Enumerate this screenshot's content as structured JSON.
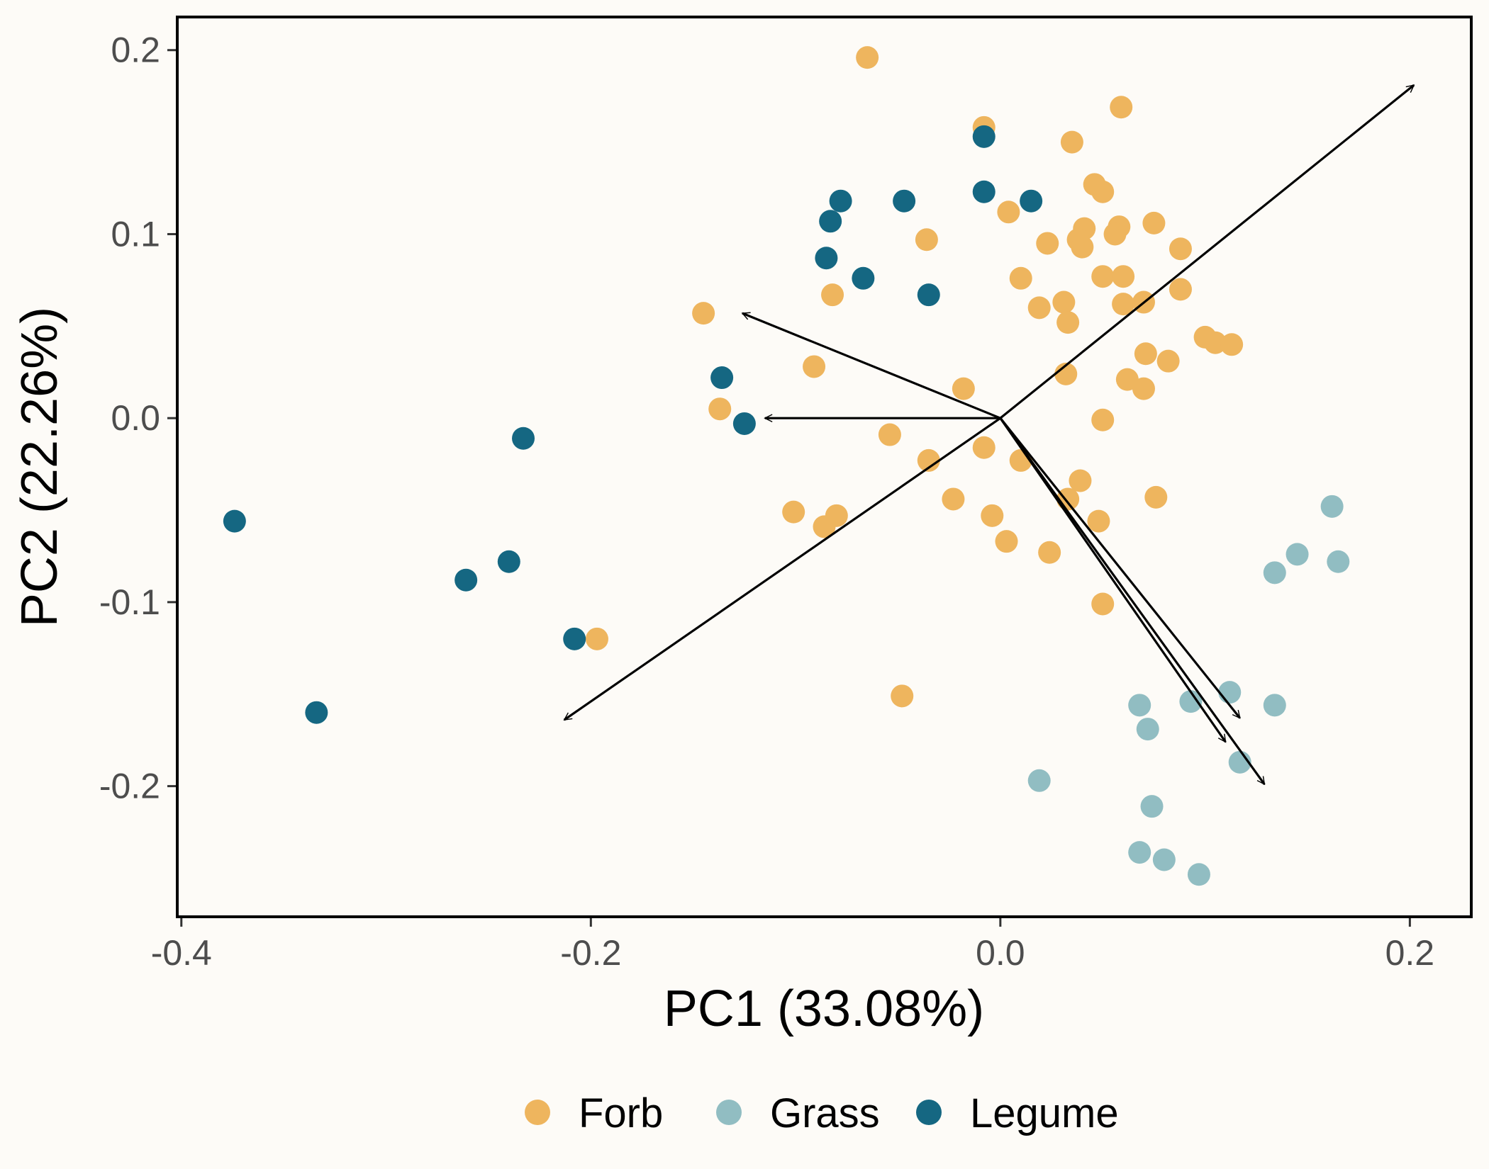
{
  "chart_data": {
    "type": "scatter",
    "xlabel": "PC1 (33.08%)",
    "ylabel": "PC2 (22.26%)",
    "xlim": [
      -0.402,
      0.23
    ],
    "ylim": [
      -0.271,
      0.218
    ],
    "x_ticks": [
      -0.4,
      -0.2,
      0.0,
      0.2
    ],
    "x_tick_labels": [
      "-0.4",
      "-0.2",
      "0.0",
      "0.2"
    ],
    "y_ticks": [
      -0.2,
      -0.1,
      0.0,
      0.1,
      0.2
    ],
    "y_tick_labels": [
      "-0.2",
      "-0.1",
      "0.0",
      "0.1",
      "0.2"
    ],
    "grid": false,
    "legend_position": "bottom",
    "series": [
      {
        "name": "Forb",
        "color": "#eeb55e",
        "points": [
          [
            -0.065,
            0.196
          ],
          [
            -0.008,
            0.158
          ],
          [
            0.059,
            0.169
          ],
          [
            0.035,
            0.15
          ],
          [
            0.05,
            0.123
          ],
          [
            0.046,
            0.127
          ],
          [
            0.004,
            0.112
          ],
          [
            0.041,
            0.103
          ],
          [
            0.058,
            0.104
          ],
          [
            0.075,
            0.106
          ],
          [
            -0.036,
            0.097
          ],
          [
            0.023,
            0.095
          ],
          [
            0.038,
            0.097
          ],
          [
            0.04,
            0.093
          ],
          [
            0.056,
            0.1
          ],
          [
            0.088,
            0.092
          ],
          [
            0.01,
            0.076
          ],
          [
            0.05,
            0.077
          ],
          [
            0.06,
            0.077
          ],
          [
            0.088,
            0.07
          ],
          [
            -0.082,
            0.067
          ],
          [
            0.019,
            0.06
          ],
          [
            0.031,
            0.063
          ],
          [
            0.06,
            0.062
          ],
          [
            0.07,
            0.063
          ],
          [
            -0.145,
            0.057
          ],
          [
            0.033,
            0.052
          ],
          [
            0.1,
            0.044
          ],
          [
            0.105,
            0.041
          ],
          [
            0.113,
            0.04
          ],
          [
            0.071,
            0.035
          ],
          [
            0.082,
            0.031
          ],
          [
            -0.091,
            0.028
          ],
          [
            0.032,
            0.024
          ],
          [
            0.062,
            0.021
          ],
          [
            0.07,
            0.016
          ],
          [
            -0.018,
            0.016
          ],
          [
            -0.137,
            0.005
          ],
          [
            0.05,
            -0.001
          ],
          [
            -0.054,
            -0.009
          ],
          [
            -0.008,
            -0.016
          ],
          [
            0.01,
            -0.023
          ],
          [
            -0.035,
            -0.023
          ],
          [
            0.039,
            -0.034
          ],
          [
            0.033,
            -0.044
          ],
          [
            -0.023,
            -0.044
          ],
          [
            0.076,
            -0.043
          ],
          [
            -0.101,
            -0.051
          ],
          [
            -0.086,
            -0.059
          ],
          [
            -0.08,
            -0.053
          ],
          [
            -0.004,
            -0.053
          ],
          [
            0.048,
            -0.056
          ],
          [
            0.003,
            -0.067
          ],
          [
            0.024,
            -0.073
          ],
          [
            0.05,
            -0.101
          ],
          [
            -0.197,
            -0.12
          ],
          [
            -0.048,
            -0.151
          ]
        ]
      },
      {
        "name": "Grass",
        "color": "#91bdc2",
        "points": [
          [
            0.162,
            -0.048
          ],
          [
            0.145,
            -0.074
          ],
          [
            0.165,
            -0.078
          ],
          [
            0.134,
            -0.084
          ],
          [
            0.112,
            -0.149
          ],
          [
            0.093,
            -0.154
          ],
          [
            0.068,
            -0.156
          ],
          [
            0.134,
            -0.156
          ],
          [
            0.072,
            -0.169
          ],
          [
            0.117,
            -0.187
          ],
          [
            0.019,
            -0.197
          ],
          [
            0.074,
            -0.211
          ],
          [
            0.068,
            -0.236
          ],
          [
            0.08,
            -0.24
          ],
          [
            0.097,
            -0.248
          ]
        ]
      },
      {
        "name": "Legume",
        "color": "#156782",
        "points": [
          [
            -0.008,
            0.153
          ],
          [
            -0.008,
            0.123
          ],
          [
            0.015,
            0.118
          ],
          [
            -0.078,
            0.118
          ],
          [
            -0.047,
            0.118
          ],
          [
            -0.083,
            0.107
          ],
          [
            -0.085,
            0.087
          ],
          [
            -0.067,
            0.076
          ],
          [
            -0.035,
            0.067
          ],
          [
            -0.136,
            0.022
          ],
          [
            -0.125,
            -0.003
          ],
          [
            -0.233,
            -0.011
          ],
          [
            -0.374,
            -0.056
          ],
          [
            -0.24,
            -0.078
          ],
          [
            -0.261,
            -0.088
          ],
          [
            -0.208,
            -0.12
          ],
          [
            -0.334,
            -0.16
          ]
        ]
      }
    ],
    "arrows": [
      [
        0.202,
        0.181
      ],
      [
        -0.126,
        0.057
      ],
      [
        -0.115,
        0.0
      ],
      [
        -0.213,
        -0.164
      ],
      [
        0.117,
        -0.163
      ],
      [
        0.11,
        -0.176
      ],
      [
        0.129,
        -0.199
      ]
    ]
  }
}
